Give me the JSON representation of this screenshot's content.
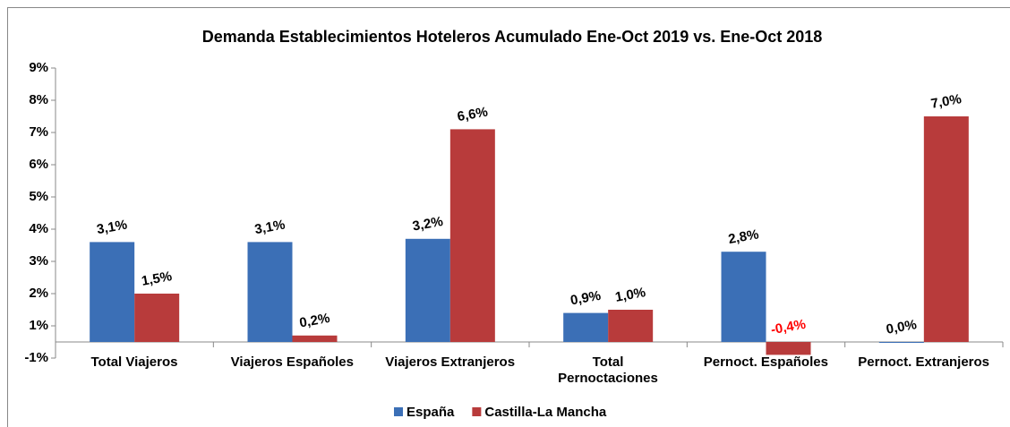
{
  "chart_data": {
    "type": "bar",
    "title": "Demanda Establecimientos Hoteleros Acumulado Ene-Oct 2019 vs. Ene-Oct 2018",
    "categories": [
      "Total Viajeros",
      "Viajeros Españoles",
      "Viajeros Extranjeros",
      "Total\nPernoctaciones",
      "Pernoct. Españoles",
      "Pernoct. Extranjeros"
    ],
    "series": [
      {
        "name": "España",
        "color": "#3b6fb6",
        "values": [
          3.1,
          3.1,
          3.2,
          0.9,
          2.8,
          0.0
        ],
        "value_labels": [
          "3,1%",
          "3,1%",
          "3,2%",
          "0,9%",
          "2,8%",
          "0,0%"
        ]
      },
      {
        "name": "Castilla-La Mancha",
        "color": "#b83b3b",
        "values": [
          1.5,
          0.2,
          6.6,
          1.0,
          -0.4,
          7.0
        ],
        "value_labels": [
          "1,5%",
          "0,2%",
          "6,6%",
          "1,0%",
          "-0,4%",
          "7,0%"
        ]
      }
    ],
    "negative_label_color": "#ff0000",
    "ylim": [
      -0.5,
      8.5
    ],
    "yticks": [
      {
        "value": 8.5,
        "label": "9%"
      },
      {
        "value": 7.5,
        "label": "8%"
      },
      {
        "value": 6.5,
        "label": "7%"
      },
      {
        "value": 5.5,
        "label": "6%"
      },
      {
        "value": 4.5,
        "label": "5%"
      },
      {
        "value": 3.5,
        "label": "4%"
      },
      {
        "value": 2.5,
        "label": "3%"
      },
      {
        "value": 1.5,
        "label": "2%"
      },
      {
        "value": 0.5,
        "label": "1%"
      },
      {
        "value": -0.5,
        "label": "-1%"
      }
    ],
    "legend": "bottom"
  }
}
